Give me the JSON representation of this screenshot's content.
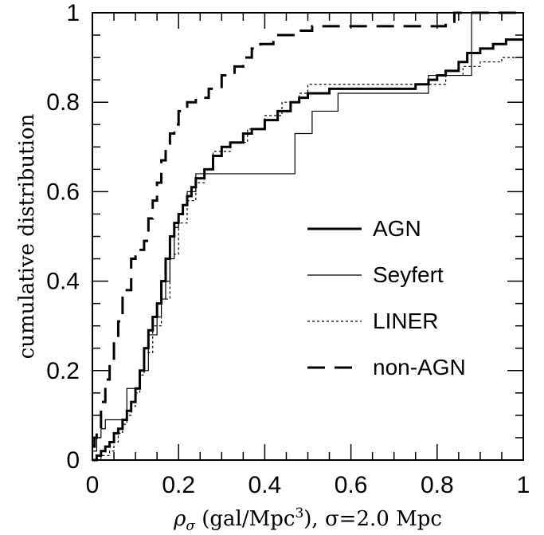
{
  "chart_data": {
    "type": "line",
    "xlabel": "ρσ (gal/Mpc³), σ=2.0 Mpc",
    "xlabel_parts": {
      "rho": "ρ",
      "sub": "σ",
      "rest": " (gal/Mpc",
      "sup": "3",
      "tail": "), σ=2.0 Mpc"
    },
    "ylabel": "cumulative distribution",
    "xlim": [
      0,
      1
    ],
    "ylim": [
      0,
      1
    ],
    "x_ticks": [
      "0",
      "0.2",
      "0.4",
      "0.6",
      "0.8",
      "1"
    ],
    "y_ticks": [
      "0",
      "0.2",
      "0.4",
      "0.6",
      "0.8",
      "1"
    ],
    "legend_position": "center-right",
    "series": [
      {
        "name": "AGN",
        "style": "thick-solid",
        "x": [
          0,
          0.01,
          0.02,
          0.03,
          0.04,
          0.05,
          0.06,
          0.07,
          0.08,
          0.09,
          0.1,
          0.11,
          0.12,
          0.13,
          0.14,
          0.15,
          0.16,
          0.17,
          0.18,
          0.19,
          0.2,
          0.21,
          0.22,
          0.23,
          0.24,
          0.26,
          0.28,
          0.3,
          0.32,
          0.35,
          0.37,
          0.4,
          0.43,
          0.46,
          0.48,
          0.5,
          0.55,
          0.6,
          0.65,
          0.7,
          0.75,
          0.78,
          0.8,
          0.82,
          0.85,
          0.87,
          0.9,
          0.93,
          0.96,
          0.98,
          1.0
        ],
        "values": [
          0,
          0.01,
          0.02,
          0.03,
          0.04,
          0.06,
          0.07,
          0.09,
          0.11,
          0.13,
          0.16,
          0.2,
          0.25,
          0.29,
          0.32,
          0.35,
          0.4,
          0.45,
          0.5,
          0.53,
          0.55,
          0.57,
          0.59,
          0.61,
          0.63,
          0.65,
          0.68,
          0.7,
          0.71,
          0.73,
          0.74,
          0.76,
          0.78,
          0.8,
          0.81,
          0.82,
          0.83,
          0.83,
          0.83,
          0.83,
          0.84,
          0.85,
          0.86,
          0.87,
          0.89,
          0.91,
          0.92,
          0.93,
          0.94,
          0.94,
          0.94
        ]
      },
      {
        "name": "Seyfert",
        "style": "thin-solid",
        "x": [
          0,
          0.01,
          0.02,
          0.03,
          0.05,
          0.06,
          0.07,
          0.08,
          0.1,
          0.11,
          0.13,
          0.15,
          0.16,
          0.17,
          0.18,
          0.19,
          0.2,
          0.21,
          0.22,
          0.24,
          0.46,
          0.47,
          0.51,
          0.57,
          0.78,
          0.88,
          1.0
        ],
        "values": [
          0.02,
          0.05,
          0.07,
          0.09,
          0.09,
          0.09,
          0.09,
          0.16,
          0.16,
          0.2,
          0.28,
          0.32,
          0.36,
          0.4,
          0.45,
          0.52,
          0.55,
          0.57,
          0.6,
          0.64,
          0.64,
          0.73,
          0.78,
          0.82,
          0.86,
          1.0,
          1.0
        ]
      },
      {
        "name": "LINER",
        "style": "dotted",
        "x": [
          0,
          0.02,
          0.04,
          0.05,
          0.06,
          0.07,
          0.08,
          0.09,
          0.1,
          0.11,
          0.12,
          0.14,
          0.16,
          0.18,
          0.2,
          0.22,
          0.24,
          0.26,
          0.28,
          0.32,
          0.36,
          0.4,
          0.44,
          0.48,
          0.5,
          0.55,
          0.6,
          0.7,
          0.78,
          0.82,
          0.86,
          0.9,
          0.95,
          1.0
        ],
        "values": [
          0,
          0.01,
          0.02,
          0.04,
          0.06,
          0.08,
          0.1,
          0.12,
          0.15,
          0.19,
          0.24,
          0.3,
          0.36,
          0.46,
          0.53,
          0.58,
          0.62,
          0.65,
          0.69,
          0.71,
          0.74,
          0.77,
          0.8,
          0.82,
          0.84,
          0.84,
          0.84,
          0.84,
          0.84,
          0.86,
          0.88,
          0.89,
          0.9,
          0.92
        ]
      },
      {
        "name": "non-AGN",
        "style": "long-dash",
        "x": [
          0,
          0.005,
          0.01,
          0.02,
          0.03,
          0.04,
          0.05,
          0.06,
          0.07,
          0.09,
          0.1,
          0.12,
          0.13,
          0.14,
          0.15,
          0.16,
          0.17,
          0.18,
          0.19,
          0.2,
          0.21,
          0.22,
          0.24,
          0.27,
          0.3,
          0.33,
          0.35,
          0.37,
          0.39,
          0.42,
          0.47,
          0.51,
          0.56,
          0.6,
          0.7,
          0.8,
          0.82,
          0.84,
          0.86,
          0.88,
          1.0
        ],
        "values": [
          0.03,
          0.05,
          0.07,
          0.13,
          0.18,
          0.22,
          0.27,
          0.31,
          0.38,
          0.45,
          0.47,
          0.49,
          0.54,
          0.58,
          0.62,
          0.67,
          0.7,
          0.73,
          0.75,
          0.78,
          0.79,
          0.8,
          0.81,
          0.83,
          0.86,
          0.88,
          0.9,
          0.92,
          0.93,
          0.95,
          0.96,
          0.97,
          0.97,
          0.97,
          0.97,
          0.97,
          0.98,
          1.0,
          1.0,
          1.0,
          1.0
        ]
      }
    ]
  }
}
